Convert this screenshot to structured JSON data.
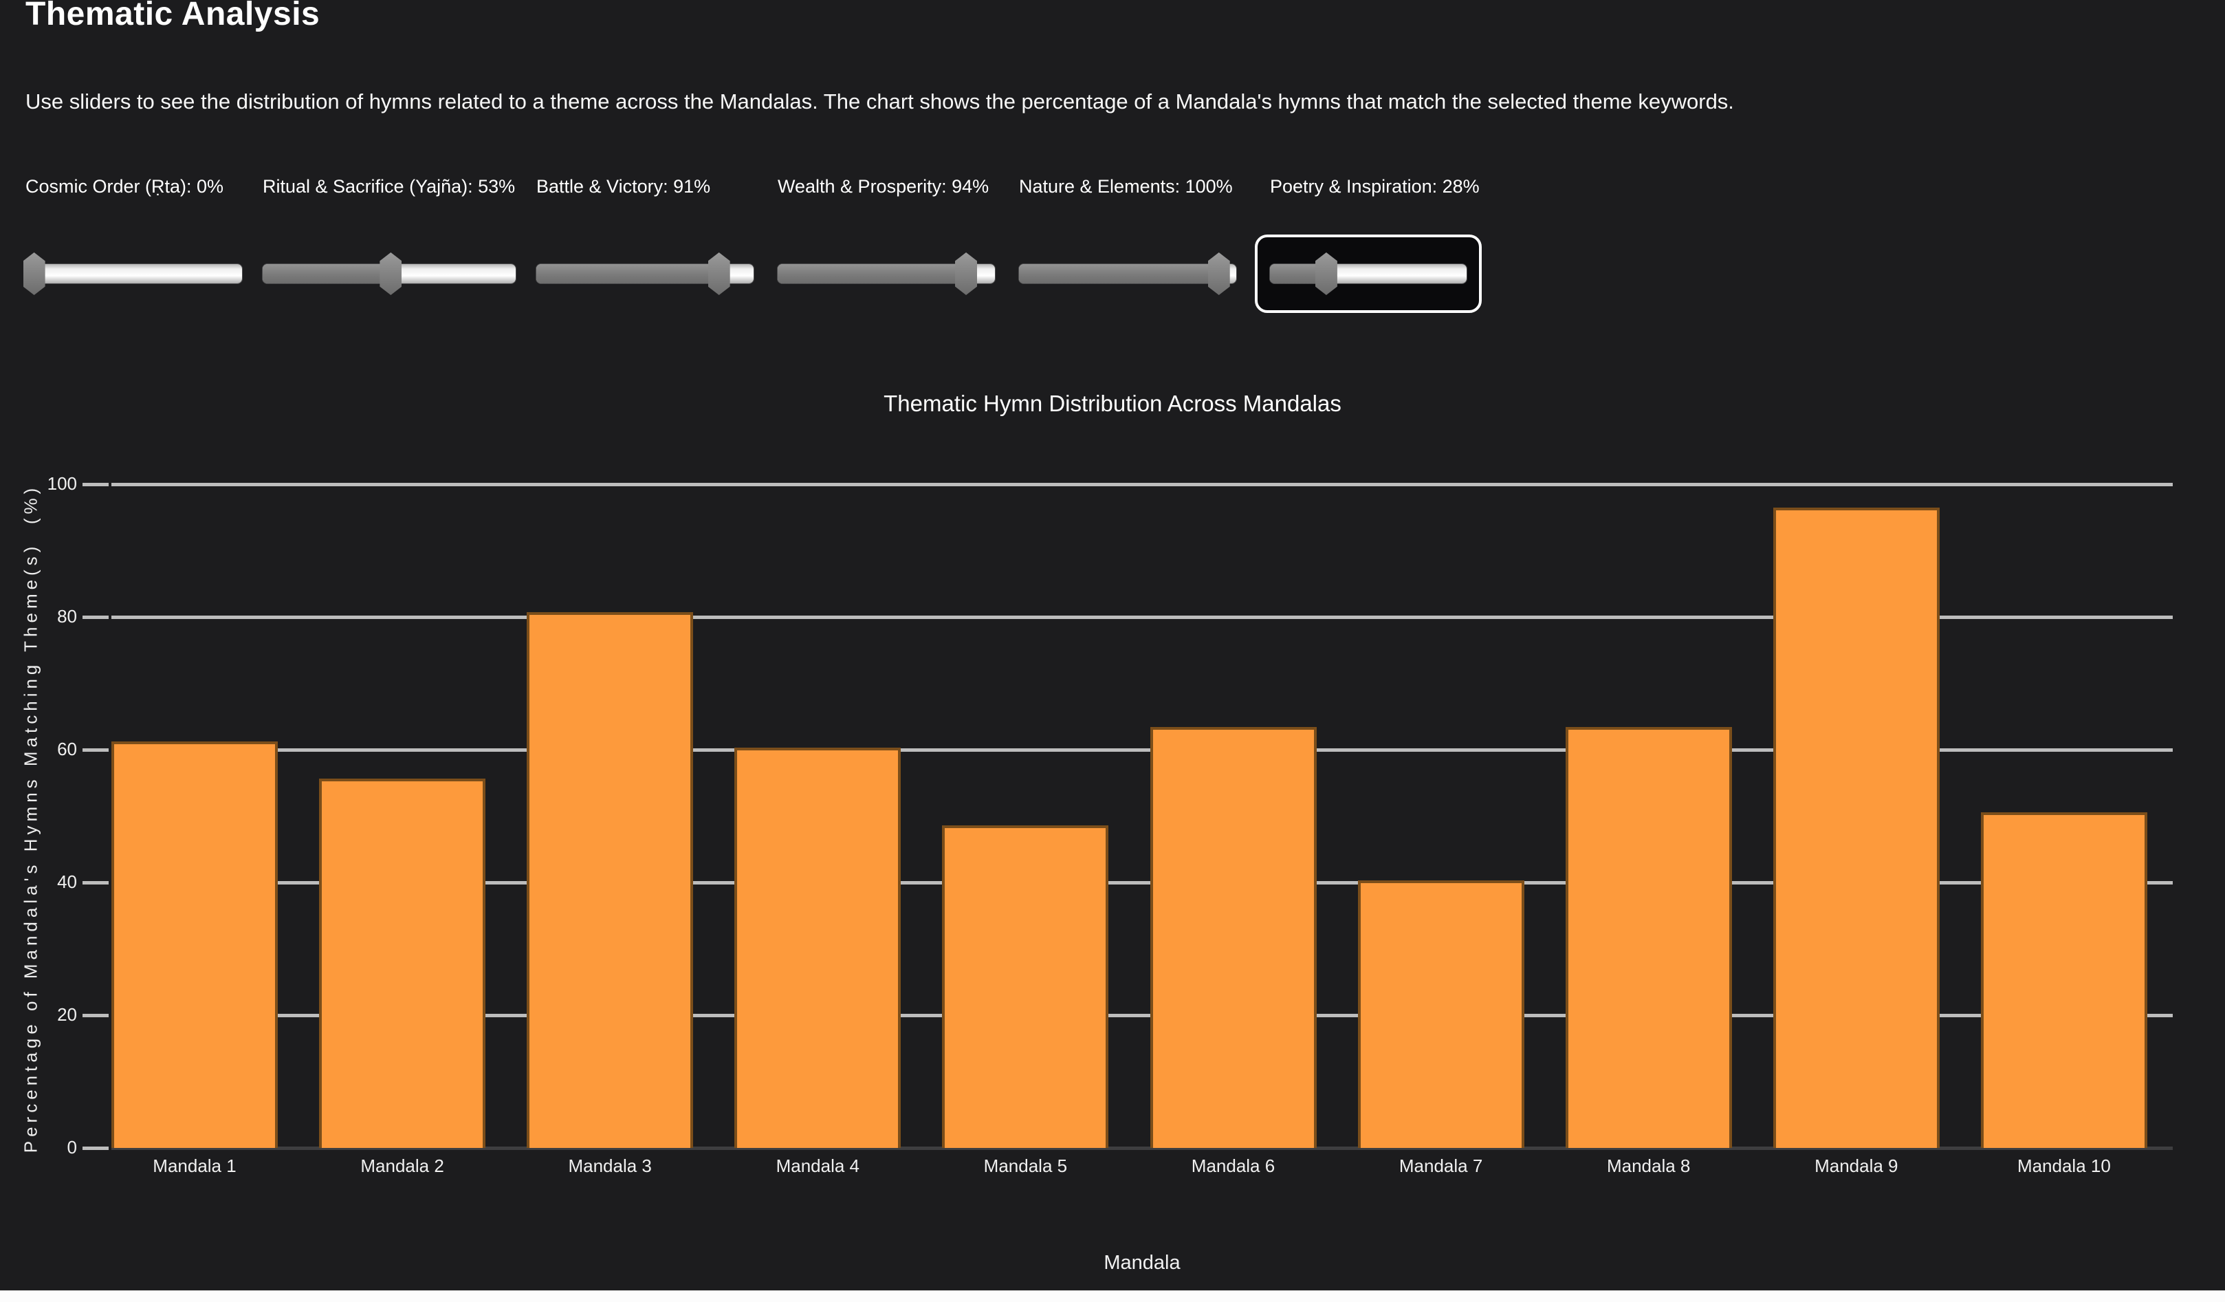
{
  "page": {
    "title": "Thematic Analysis",
    "description": "Use sliders to see the distribution of hymns related to a theme across the Mandalas. The chart shows the percentage of a Mandala's hymns that match the selected theme keywords."
  },
  "sliders": [
    {
      "label": "Cosmic Order (Ṛta): 0%",
      "theme": "Cosmic Order (Ṛta)",
      "value_percent": 0,
      "focused": false
    },
    {
      "label": "Ritual & Sacrifice (Yajña): 53%",
      "theme": "Ritual & Sacrifice (Yajña)",
      "value_percent": 53,
      "focused": false
    },
    {
      "label": "Battle & Victory: 91%",
      "theme": "Battle & Victory",
      "value_percent": 91,
      "focused": false
    },
    {
      "label": "Wealth & Prosperity: 94%",
      "theme": "Wealth & Prosperity",
      "value_percent": 94,
      "focused": false
    },
    {
      "label": "Nature & Elements: 100%",
      "theme": "Nature & Elements",
      "value_percent": 100,
      "focused": false
    },
    {
      "label": "Poetry & Inspiration: 28%",
      "theme": "Poetry & Inspiration",
      "value_percent": 28,
      "focused": true
    }
  ],
  "chart_data": {
    "type": "bar",
    "title": "Thematic Hymn Distribution Across Mandalas",
    "categories": [
      "Mandala 1",
      "Mandala 2",
      "Mandala 3",
      "Mandala 4",
      "Mandala 5",
      "Mandala 6",
      "Mandala 7",
      "Mandala 8",
      "Mandala 9",
      "Mandala 10"
    ],
    "values": [
      61.2,
      55.6,
      80.7,
      60.3,
      48.6,
      63.4,
      40.3,
      63.4,
      96.5,
      50.6
    ],
    "xlabel": "Mandala",
    "ylabel": "Percentage of Mandala's Hymns Matching Theme(s)  (%)",
    "ylim": [
      0,
      100
    ],
    "yticks": [
      0,
      20,
      40,
      60,
      80,
      100
    ],
    "grid": true,
    "legend": "none",
    "bar_color": "#fd9a3c",
    "bar_border_color": "#7b4e1a",
    "gridline_color": "#bdbdbd",
    "background_color": "#1c1c1e",
    "text_color": "#f0f0f0"
  }
}
